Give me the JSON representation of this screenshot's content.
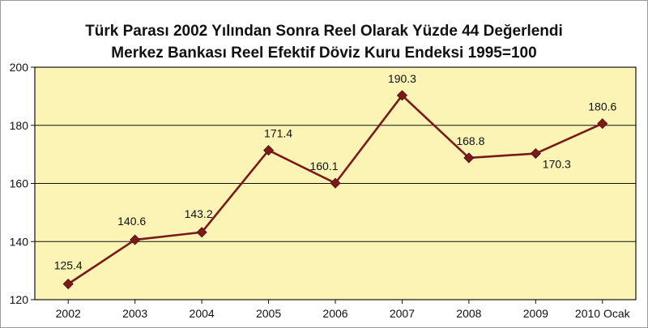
{
  "chart_data": {
    "type": "line",
    "title": "Türk Parası 2002 Yılından Sonra Reel Olarak Yüzde 44 Değerlendi",
    "subtitle": "Merkez Bankası Reel Efektif Döviz Kuru Endeksi 1995=100",
    "xlabel": "",
    "ylabel": "",
    "categories": [
      "2002",
      "2003",
      "2004",
      "2005",
      "2006",
      "2007",
      "2008",
      "2009",
      "2010 Ocak"
    ],
    "series": [
      {
        "values": [
          125.4,
          140.6,
          143.2,
          171.4,
          160.1,
          190.3,
          168.8,
          170.3,
          180.6
        ],
        "labels": [
          "125.4",
          "140.6",
          "143.2",
          "171.4",
          "160.1",
          "190.3",
          "168.8",
          "170.3",
          "180.6"
        ],
        "color": "#7a1a1a"
      }
    ],
    "ylim": [
      120,
      200
    ],
    "yticks": [
      120,
      140,
      160,
      180,
      200
    ],
    "grid": true,
    "legend": "none",
    "plot_background": "#fbf4b4"
  }
}
